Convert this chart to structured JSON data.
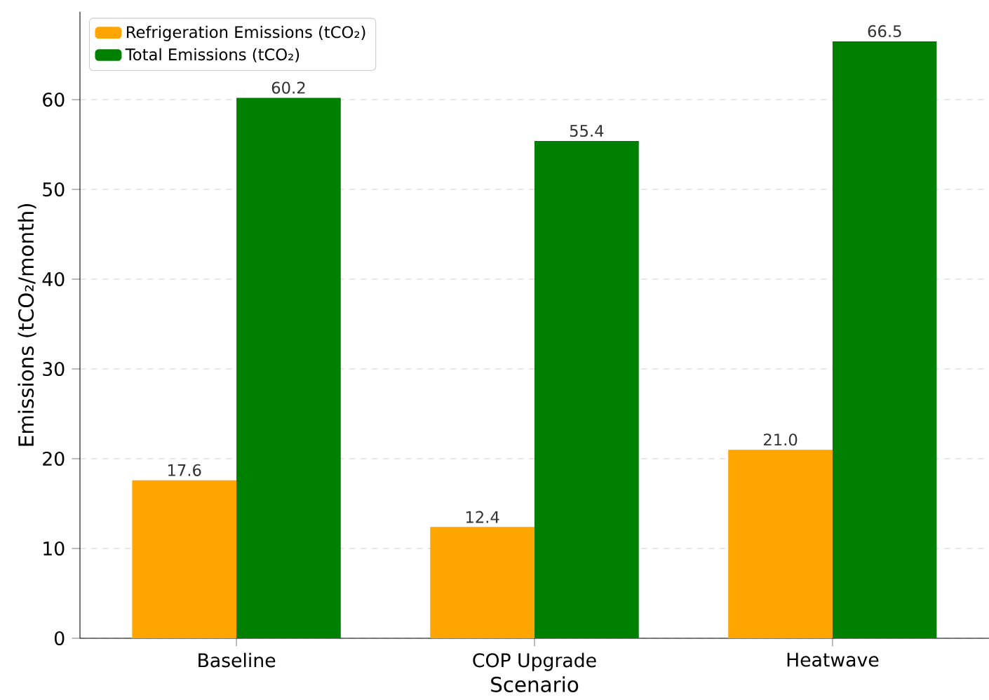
{
  "chart_data": {
    "type": "bar",
    "xlabel": "Scenario",
    "ylabel": "Emissions (tCO₂/month)",
    "categories": [
      "Baseline",
      "COP Upgrade",
      "Heatwave"
    ],
    "series": [
      {
        "name": "Refrigeration Emissions (tCO₂)",
        "color": "#ffa500",
        "values": [
          17.6,
          12.4,
          21.0
        ],
        "value_labels": [
          "17.6",
          "12.4",
          "21.0"
        ]
      },
      {
        "name": "Total Emissions (tCO₂)",
        "color": "#008000",
        "values": [
          60.2,
          55.4,
          66.5
        ],
        "value_labels": [
          "60.2",
          "55.4",
          "66.5"
        ]
      }
    ],
    "ylim": [
      0,
      69.8
    ],
    "yticks": [
      0,
      10,
      20,
      30,
      40,
      50,
      60
    ],
    "grid": "y",
    "legend": "top left"
  }
}
